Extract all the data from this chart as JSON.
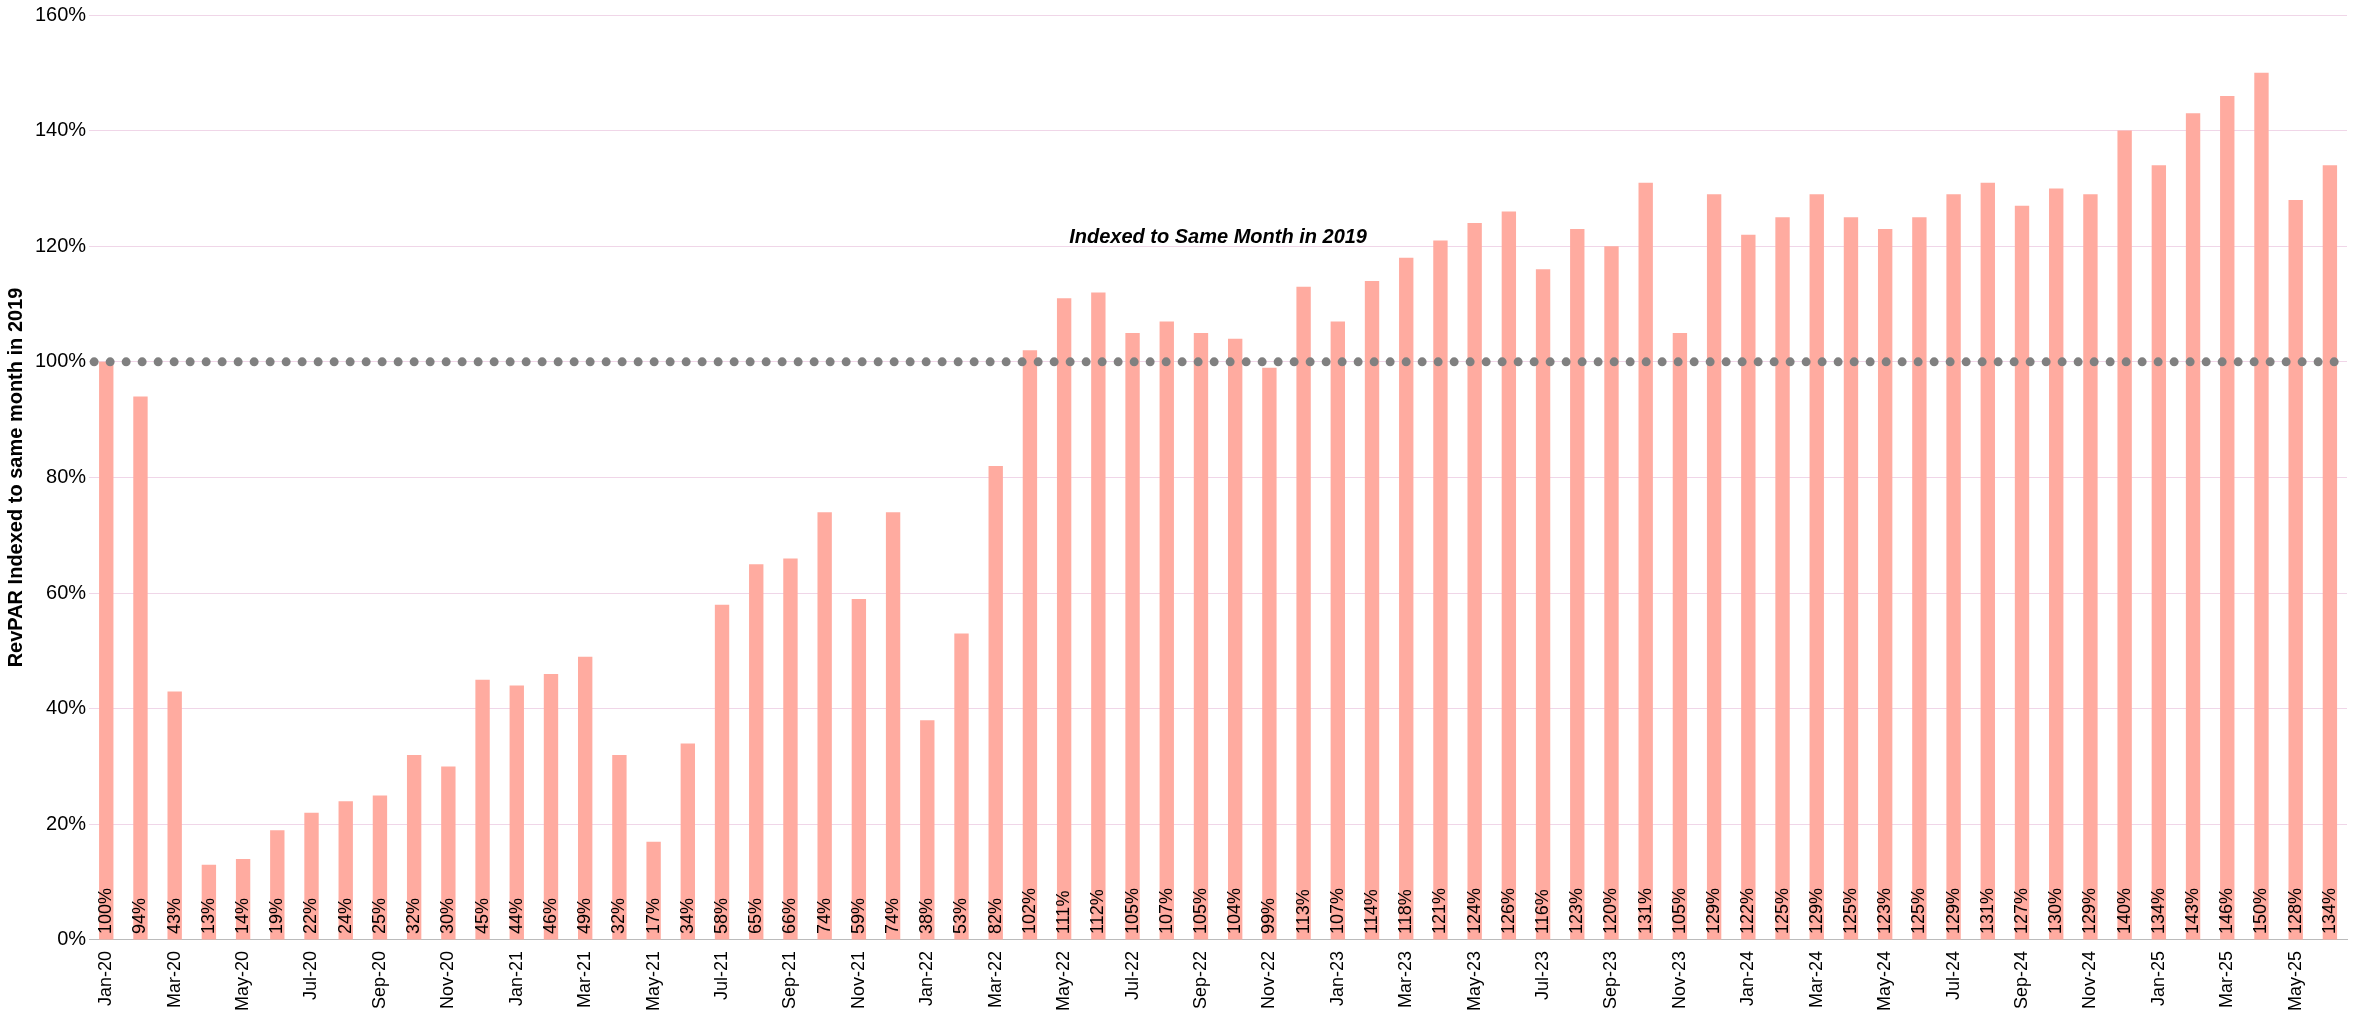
{
  "chart_data": {
    "type": "bar",
    "ylabel": "RevPAR Indexed to same month in 2019",
    "categories": [
      "Jan-20",
      null,
      "Mar-20",
      null,
      "May-20",
      null,
      "Jul-20",
      null,
      "Sep-20",
      null,
      "Nov-20",
      null,
      "Jan-21",
      null,
      "Mar-21",
      null,
      "May-21",
      null,
      "Jul-21",
      null,
      "Sep-21",
      null,
      "Nov-21",
      null,
      "Jan-22",
      null,
      "Mar-22",
      null,
      "May-22",
      null,
      "Jul-22",
      null,
      "Sep-22",
      null,
      "Nov-22",
      null,
      "Jan-23",
      null,
      "Mar-23",
      null,
      "May-23",
      null,
      "Jul-23",
      null,
      "Sep-23",
      null,
      "Nov-23",
      null,
      "Jan-24",
      null,
      "Mar-24",
      null,
      "May-24",
      null,
      "Jul-24",
      null,
      "Sep-24",
      null,
      "Nov-24",
      null,
      "Jan-25",
      null,
      "Mar-25",
      null,
      "May-25",
      null
    ],
    "values": [
      100,
      94,
      43,
      13,
      14,
      19,
      22,
      24,
      25,
      32,
      30,
      45,
      44,
      46,
      49,
      32,
      17,
      34,
      58,
      65,
      66,
      74,
      59,
      74,
      38,
      53,
      82,
      102,
      111,
      112,
      105,
      107,
      105,
      104,
      99,
      113,
      107,
      114,
      118,
      121,
      124,
      126,
      116,
      123,
      120,
      131,
      105,
      129,
      122,
      125,
      129,
      125,
      123,
      125,
      129,
      131,
      127,
      130,
      129,
      140,
      134,
      143,
      146,
      150,
      128,
      134
    ],
    "value_labels": [
      "100%",
      "94%",
      "43%",
      "13%",
      "14%",
      "19%",
      "22%",
      "24%",
      "25%",
      "32%",
      "30%",
      "45%",
      "44%",
      "46%",
      "49%",
      "32%",
      "17%",
      "34%",
      "58%",
      "65%",
      "66%",
      "74%",
      "59%",
      "74%",
      "38%",
      "53%",
      "82%",
      "102%",
      "111%",
      "112%",
      "105%",
      "107%",
      "105%",
      "104%",
      "99%",
      "113%",
      "107%",
      "114%",
      "118%",
      "121%",
      "124%",
      "126%",
      "116%",
      "123%",
      "120%",
      "131%",
      "105%",
      "129%",
      "122%",
      "125%",
      "129%",
      "125%",
      "123%",
      "125%",
      "129%",
      "131%",
      "127%",
      "130%",
      "129%",
      "140%",
      "134%",
      "143%",
      "146%",
      "150%",
      "128%",
      "134%"
    ],
    "color": "#ffaba0",
    "ylim": [
      0,
      160
    ],
    "yticks": [
      {
        "value": 0,
        "label": "0%"
      },
      {
        "value": 20,
        "label": "20%"
      },
      {
        "value": 40,
        "label": "40%"
      },
      {
        "value": 60,
        "label": "60%"
      },
      {
        "value": 80,
        "label": "80%"
      },
      {
        "value": 100,
        "label": "100%"
      },
      {
        "value": 120,
        "label": "120%"
      },
      {
        "value": 140,
        "label": "140%"
      },
      {
        "value": 160,
        "label": "160%"
      }
    ],
    "ref_lines": [
      {
        "axis": "y",
        "value": 100,
        "color": "#808080",
        "line_style": "dotted"
      }
    ],
    "annotations": [
      "Indexed to Same Month in 2019"
    ],
    "grid": "y",
    "legend": false
  }
}
